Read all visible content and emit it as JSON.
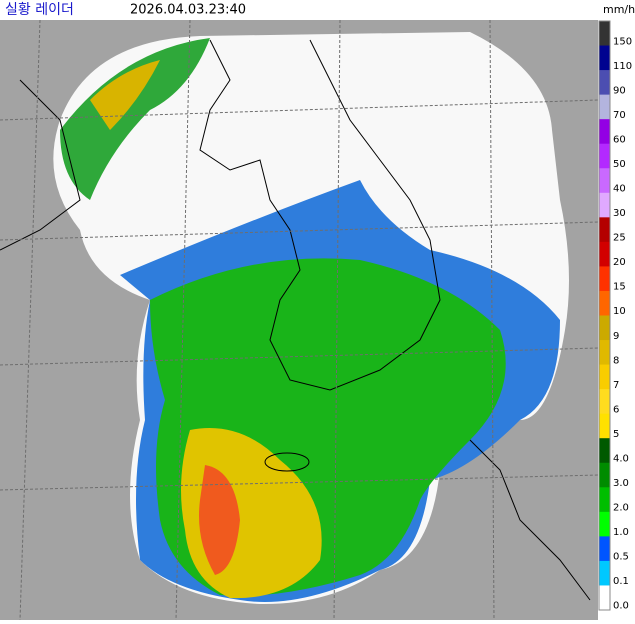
{
  "header": {
    "title": "실황 레이더",
    "timestamp": "2026.04.03.23:40",
    "unit": "mm/h"
  },
  "legend": [
    {
      "label": "150",
      "color": "#333333"
    },
    {
      "label": "110",
      "color": "#000390"
    },
    {
      "label": "90",
      "color": "#4c4eb1"
    },
    {
      "label": "70",
      "color": "#b3b4de"
    },
    {
      "label": "60",
      "color": "#9300e4"
    },
    {
      "label": "50",
      "color": "#b329ff"
    },
    {
      "label": "40",
      "color": "#c969ff"
    },
    {
      "label": "30",
      "color": "#e0a9ff"
    },
    {
      "label": "25",
      "color": "#b40000"
    },
    {
      "label": "20",
      "color": "#d20000"
    },
    {
      "label": "15",
      "color": "#ff3200"
    },
    {
      "label": "10",
      "color": "#ff6600"
    },
    {
      "label": "9",
      "color": "#ccaa00"
    },
    {
      "label": "8",
      "color": "#e0b900"
    },
    {
      "label": "7",
      "color": "#f9cd00"
    },
    {
      "label": "6",
      "color": "#ffdc1f"
    },
    {
      "label": "5",
      "color": "#ffe100"
    },
    {
      "label": "4.0",
      "color": "#005a00"
    },
    {
      "label": "3.0",
      "color": "#008c00"
    },
    {
      "label": "2.0",
      "color": "#00be00"
    },
    {
      "label": "1.0",
      "color": "#00ff00"
    },
    {
      "label": "0.5",
      "color": "#0055ff"
    },
    {
      "label": "0.1",
      "color": "#00c8ff"
    },
    {
      "label": "0.0",
      "color": "#ffffff"
    }
  ]
}
